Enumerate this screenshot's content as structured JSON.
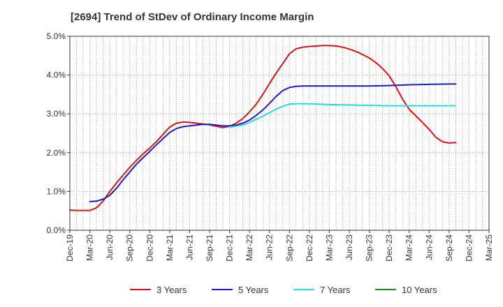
{
  "chart_data": {
    "type": "line",
    "title": "[2694]  Trend of StDev of Ordinary Income Margin",
    "xlabel": "",
    "ylabel": "",
    "x_categories": [
      "Dec-19",
      "Mar-20",
      "Jun-20",
      "Sep-20",
      "Dec-20",
      "Mar-21",
      "Jun-21",
      "Sep-21",
      "Dec-21",
      "Mar-22",
      "Jun-22",
      "Sep-22",
      "Dec-22",
      "Mar-23",
      "Jun-23",
      "Sep-23",
      "Dec-23",
      "Mar-24",
      "Jun-24",
      "Sep-24",
      "Dec-24",
      "Mar-25"
    ],
    "y_ticks": [
      "0.0%",
      "1.0%",
      "2.0%",
      "3.0%",
      "4.0%",
      "5.0%"
    ],
    "ylim": [
      0,
      5
    ],
    "grid": true,
    "legend_position": "bottom",
    "series": [
      {
        "name": "3 Years",
        "color": "#dd1111",
        "points": [
          [
            "Dec-19",
            0.52
          ],
          [
            "Jan-20",
            0.51
          ],
          [
            "Feb-20",
            0.51
          ],
          [
            "Mar-20",
            0.51
          ],
          [
            "Apr-20",
            0.58
          ],
          [
            "May-20",
            0.75
          ],
          [
            "Jun-20",
            1.0
          ],
          [
            "Jul-20",
            1.22
          ],
          [
            "Aug-20",
            1.42
          ],
          [
            "Sep-20",
            1.62
          ],
          [
            "Oct-20",
            1.8
          ],
          [
            "Nov-20",
            1.97
          ],
          [
            "Dec-20",
            2.12
          ],
          [
            "Jan-21",
            2.28
          ],
          [
            "Feb-21",
            2.47
          ],
          [
            "Mar-21",
            2.66
          ],
          [
            "Apr-21",
            2.76
          ],
          [
            "May-21",
            2.79
          ],
          [
            "Jun-21",
            2.78
          ],
          [
            "Jul-21",
            2.76
          ],
          [
            "Aug-21",
            2.74
          ],
          [
            "Sep-21",
            2.72
          ],
          [
            "Oct-21",
            2.68
          ],
          [
            "Nov-21",
            2.65
          ],
          [
            "Dec-21",
            2.68
          ],
          [
            "Jan-22",
            2.76
          ],
          [
            "Feb-22",
            2.88
          ],
          [
            "Mar-22",
            3.05
          ],
          [
            "Apr-22",
            3.25
          ],
          [
            "May-22",
            3.5
          ],
          [
            "Jun-22",
            3.78
          ],
          [
            "Jul-22",
            4.05
          ],
          [
            "Aug-22",
            4.3
          ],
          [
            "Sep-22",
            4.55
          ],
          [
            "Oct-22",
            4.68
          ],
          [
            "Nov-22",
            4.72
          ],
          [
            "Dec-22",
            4.74
          ],
          [
            "Jan-23",
            4.75
          ],
          [
            "Feb-23",
            4.76
          ],
          [
            "Mar-23",
            4.76
          ],
          [
            "Apr-23",
            4.75
          ],
          [
            "May-23",
            4.72
          ],
          [
            "Jun-23",
            4.67
          ],
          [
            "Jul-23",
            4.61
          ],
          [
            "Aug-23",
            4.53
          ],
          [
            "Sep-23",
            4.44
          ],
          [
            "Oct-23",
            4.32
          ],
          [
            "Nov-23",
            4.17
          ],
          [
            "Dec-23",
            3.98
          ],
          [
            "Jan-24",
            3.7
          ],
          [
            "Feb-24",
            3.38
          ],
          [
            "Mar-24",
            3.12
          ],
          [
            "Apr-24",
            2.95
          ],
          [
            "May-24",
            2.78
          ],
          [
            "Jun-24",
            2.6
          ],
          [
            "Jul-24",
            2.4
          ],
          [
            "Aug-24",
            2.28
          ],
          [
            "Sep-24",
            2.25
          ],
          [
            "Oct-24",
            2.26
          ]
        ]
      },
      {
        "name": "5 Years",
        "color": "#1a1acc",
        "points": [
          [
            "Mar-20",
            0.74
          ],
          [
            "Apr-20",
            0.75
          ],
          [
            "May-20",
            0.8
          ],
          [
            "Jun-20",
            0.9
          ],
          [
            "Jul-20",
            1.08
          ],
          [
            "Aug-20",
            1.3
          ],
          [
            "Sep-20",
            1.5
          ],
          [
            "Oct-20",
            1.7
          ],
          [
            "Nov-20",
            1.87
          ],
          [
            "Dec-20",
            2.03
          ],
          [
            "Jan-21",
            2.2
          ],
          [
            "Feb-21",
            2.36
          ],
          [
            "Mar-21",
            2.52
          ],
          [
            "Apr-21",
            2.62
          ],
          [
            "May-21",
            2.67
          ],
          [
            "Jun-21",
            2.69
          ],
          [
            "Jul-21",
            2.71
          ],
          [
            "Aug-21",
            2.73
          ],
          [
            "Sep-21",
            2.73
          ],
          [
            "Oct-21",
            2.71
          ],
          [
            "Nov-21",
            2.69
          ],
          [
            "Dec-21",
            2.69
          ],
          [
            "Jan-22",
            2.71
          ],
          [
            "Feb-22",
            2.76
          ],
          [
            "Mar-22",
            2.84
          ],
          [
            "Apr-22",
            2.96
          ],
          [
            "May-22",
            3.1
          ],
          [
            "Jun-22",
            3.27
          ],
          [
            "Jul-22",
            3.45
          ],
          [
            "Aug-22",
            3.6
          ],
          [
            "Sep-22",
            3.68
          ],
          [
            "Oct-22",
            3.71
          ],
          [
            "Nov-22",
            3.72
          ],
          [
            "Dec-22",
            3.72
          ],
          [
            "Mar-23",
            3.72
          ],
          [
            "Jun-23",
            3.72
          ],
          [
            "Sep-23",
            3.72
          ],
          [
            "Dec-23",
            3.73
          ],
          [
            "Mar-24",
            3.75
          ],
          [
            "Jun-24",
            3.76
          ],
          [
            "Sep-24",
            3.77
          ],
          [
            "Oct-24",
            3.77
          ]
        ]
      },
      {
        "name": "7 Years",
        "color": "#22dddd",
        "points": [
          [
            "Dec-21",
            2.66
          ],
          [
            "Jan-22",
            2.68
          ],
          [
            "Feb-22",
            2.72
          ],
          [
            "Mar-22",
            2.78
          ],
          [
            "Apr-22",
            2.86
          ],
          [
            "May-22",
            2.94
          ],
          [
            "Jun-22",
            3.03
          ],
          [
            "Jul-22",
            3.12
          ],
          [
            "Aug-22",
            3.2
          ],
          [
            "Sep-22",
            3.25
          ],
          [
            "Oct-22",
            3.26
          ],
          [
            "Dec-22",
            3.26
          ],
          [
            "Mar-23",
            3.24
          ],
          [
            "Jun-23",
            3.23
          ],
          [
            "Sep-23",
            3.22
          ],
          [
            "Dec-23",
            3.21
          ],
          [
            "Mar-24",
            3.21
          ],
          [
            "Jun-24",
            3.21
          ],
          [
            "Sep-24",
            3.21
          ],
          [
            "Oct-24",
            3.21
          ]
        ]
      },
      {
        "name": "10 Years",
        "color": "#1a8a1a",
        "points": []
      }
    ]
  }
}
